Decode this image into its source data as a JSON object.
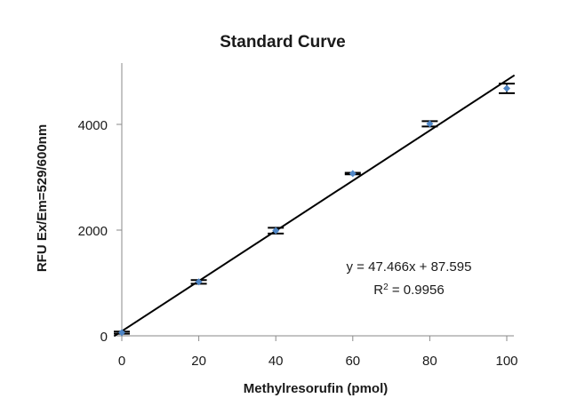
{
  "chart_data": {
    "type": "scatter",
    "title": "Standard Curve",
    "xlabel": "Methylresorufin (pmol)",
    "ylabel": "RFU Ex/Em=529/600nm",
    "xlim": [
      0,
      100
    ],
    "ylim": [
      0,
      5000
    ],
    "x_ticks": [
      0,
      20,
      40,
      60,
      80,
      100
    ],
    "y_ticks": [
      0,
      2000,
      4000
    ],
    "grid": false,
    "legend": "none",
    "series": [
      {
        "x": [
          0,
          20,
          40,
          60,
          80,
          100
        ],
        "y": [
          60,
          1020,
          1990,
          3070,
          4010,
          4680
        ],
        "error": [
          20,
          35,
          55,
          15,
          50,
          90
        ],
        "color": "#4f86c6"
      }
    ],
    "trendline": {
      "slope": 47.466,
      "intercept": 87.595,
      "color": "#000000",
      "equation": "y = 47.466x + 87.595",
      "r2_prefix": "R",
      "r2_sup": "2",
      "r2_value": " = 0.9956"
    }
  }
}
